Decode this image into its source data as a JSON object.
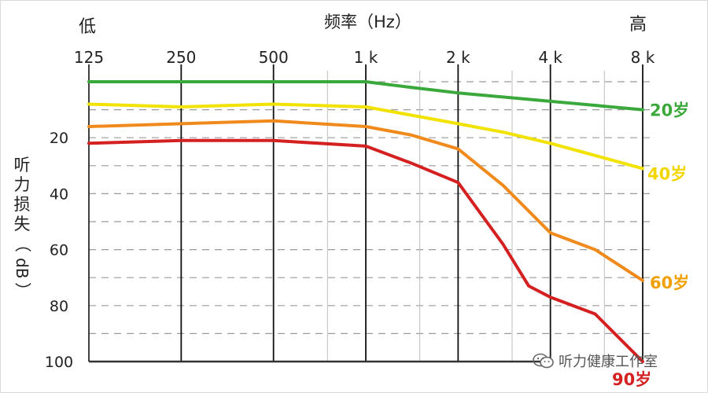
{
  "header": {
    "low": "低",
    "high": "高",
    "title": "频率（Hz）"
  },
  "ylabel_chars": [
    "听",
    "力",
    "损",
    "失",
    "（",
    "dB",
    "）"
  ],
  "watermark": {
    "text": "听力健康工作室",
    "icon": "wechat-icon"
  },
  "chart_data": {
    "type": "line",
    "title": "频率（Hz）",
    "ylabel": "听力损失（dB）",
    "x": [
      "125",
      "250",
      "500",
      "1 k",
      "2 k",
      "4 k",
      "8 k"
    ],
    "x_values": [
      125,
      250,
      500,
      1000,
      2000,
      4000,
      8000
    ],
    "x_scale": "log",
    "x_axis_position": "top",
    "yticks": [
      20,
      40,
      60,
      80,
      100
    ],
    "ylim": [
      0,
      100
    ],
    "y_inverted": true,
    "grid": true,
    "series": [
      {
        "name": "20岁",
        "color": "#3aa83a",
        "points": [
          [
            125,
            0
          ],
          [
            250,
            0
          ],
          [
            500,
            0
          ],
          [
            1000,
            0
          ],
          [
            1400,
            2
          ],
          [
            2000,
            4
          ],
          [
            4000,
            7
          ],
          [
            8000,
            10
          ]
        ]
      },
      {
        "name": "40岁",
        "color": "#f2e200",
        "points": [
          [
            125,
            8
          ],
          [
            250,
            9
          ],
          [
            500,
            8
          ],
          [
            1000,
            9
          ],
          [
            2000,
            15
          ],
          [
            2800,
            18
          ],
          [
            4000,
            22
          ],
          [
            8000,
            31
          ]
        ]
      },
      {
        "name": "60岁",
        "color": "#f08a1c",
        "points": [
          [
            125,
            16
          ],
          [
            250,
            15
          ],
          [
            500,
            14
          ],
          [
            1000,
            16
          ],
          [
            1400,
            19
          ],
          [
            2000,
            24
          ],
          [
            2800,
            37
          ],
          [
            4000,
            54
          ],
          [
            5600,
            60
          ],
          [
            8000,
            71
          ]
        ]
      },
      {
        "name": "90岁",
        "color": "#d42020",
        "points": [
          [
            125,
            22
          ],
          [
            250,
            21
          ],
          [
            500,
            21
          ],
          [
            1000,
            23
          ],
          [
            1400,
            29
          ],
          [
            2000,
            36
          ],
          [
            2800,
            58
          ],
          [
            3400,
            73
          ],
          [
            4000,
            77
          ],
          [
            5600,
            83
          ],
          [
            8000,
            100
          ]
        ]
      }
    ]
  }
}
